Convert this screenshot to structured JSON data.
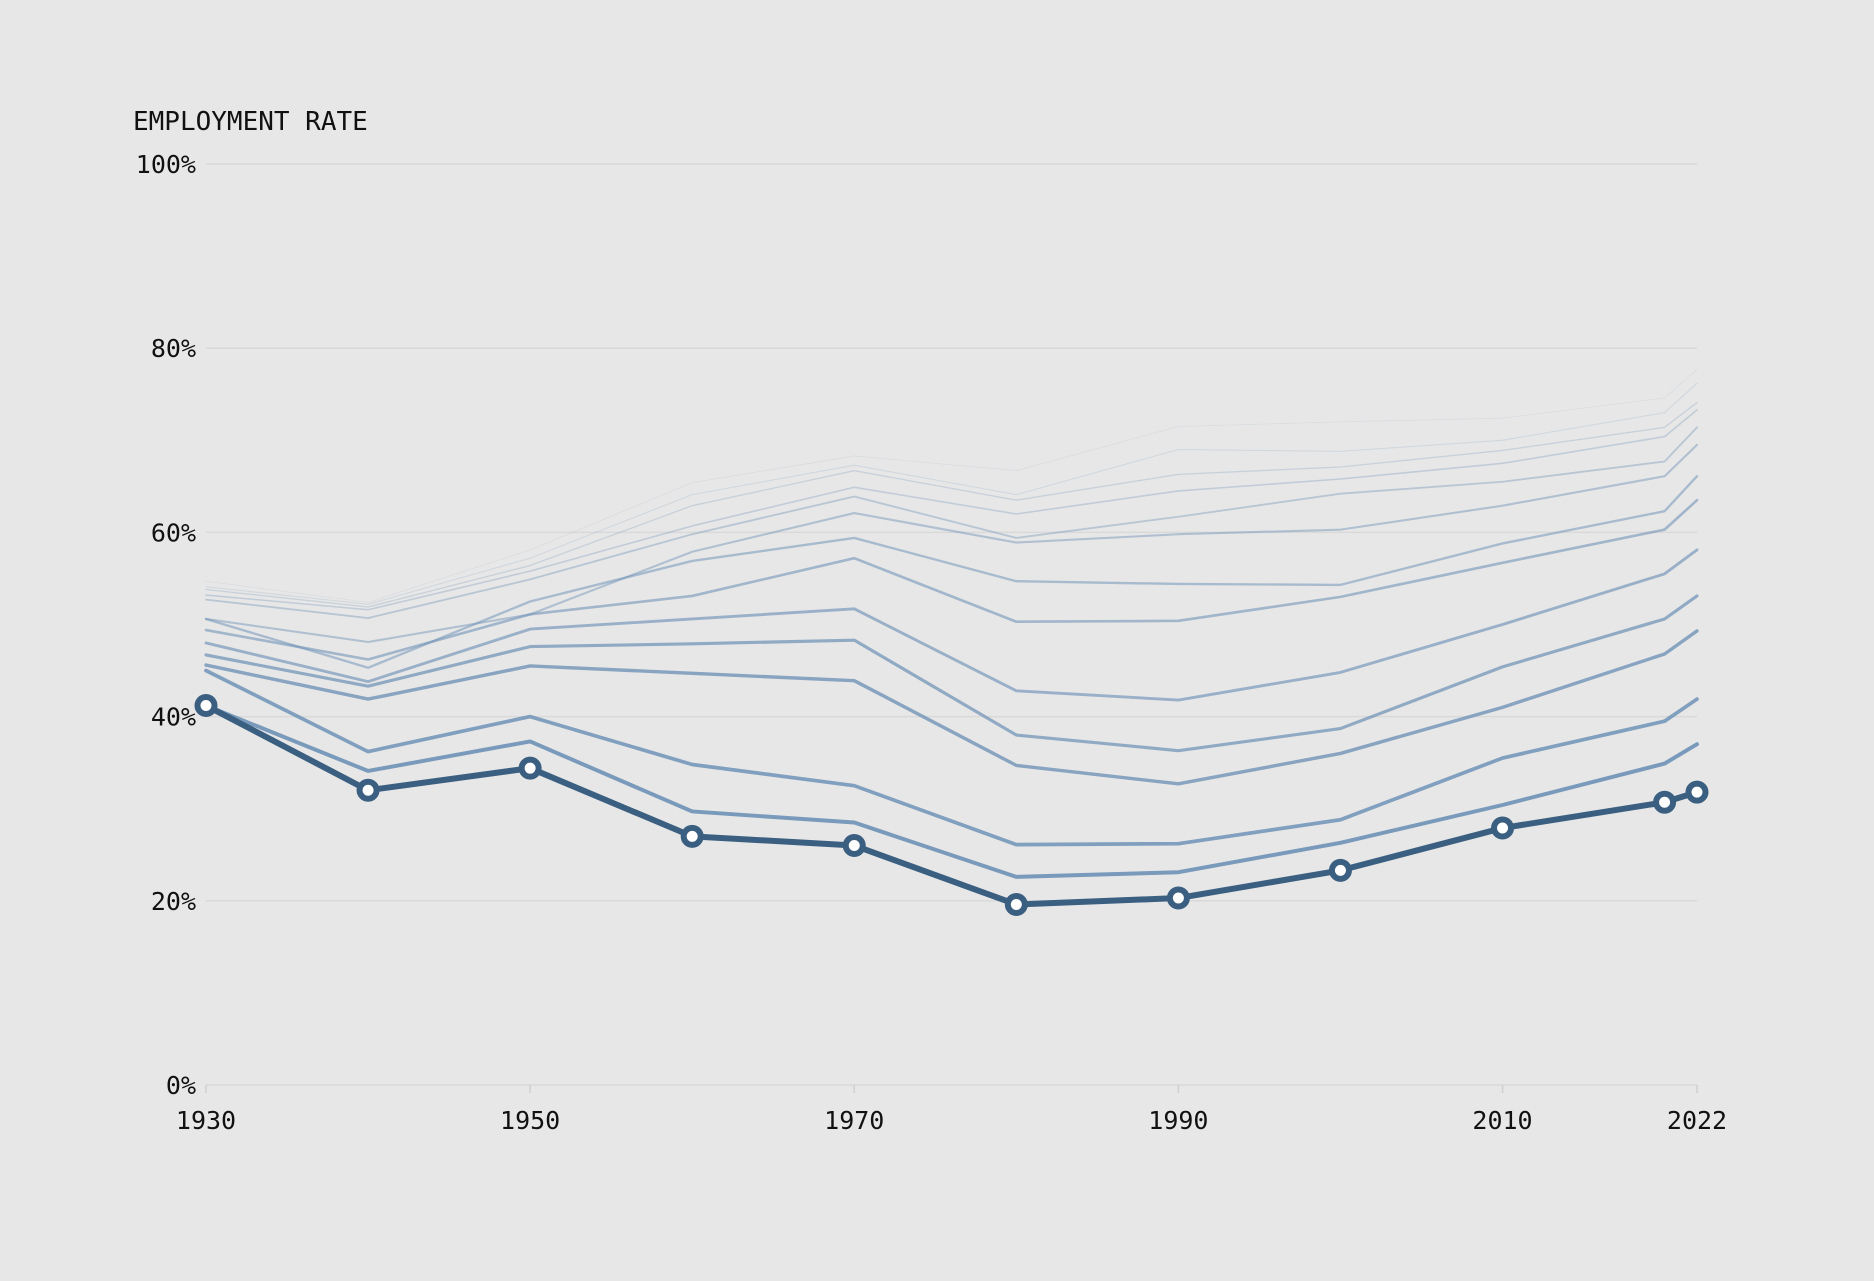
{
  "chart_data": {
    "type": "line",
    "title": "",
    "ylabel": "EMPLOYMENT RATE",
    "xlabel": "",
    "ylim": [
      0,
      100
    ],
    "xlim": [
      1930,
      2022
    ],
    "y_ticks": [
      "0%",
      "20%",
      "40%",
      "60%",
      "80%",
      "100%"
    ],
    "y_tick_values": [
      0,
      20,
      40,
      60,
      80,
      100
    ],
    "x_ticks": [
      "1930",
      "1950",
      "1970",
      "1990",
      "2010",
      "2022"
    ],
    "x_tick_values": [
      1930,
      1950,
      1970,
      1990,
      2010,
      2022
    ],
    "grid": "horizontal",
    "x": [
      1930,
      1940,
      1950,
      1960,
      1970,
      1980,
      1990,
      2000,
      2010,
      2020,
      2022
    ],
    "highlight_series_index": 0,
    "colors": {
      "background": "#e7e7e7",
      "highlight": "#3b5f80",
      "series": "#7093b7",
      "grid": "#d9d9d9"
    },
    "series": [
      {
        "values": [
          41.2,
          32.0,
          34.4,
          27.0,
          26.0,
          19.6,
          20.3,
          23.3,
          27.9,
          30.7,
          31.8
        ]
      },
      {
        "values": [
          41.2,
          34.1,
          37.3,
          29.7,
          28.5,
          22.6,
          23.1,
          26.3,
          30.4,
          34.9,
          37.0
        ]
      },
      {
        "values": [
          45.0,
          36.2,
          40.0,
          34.8,
          32.5,
          26.1,
          26.2,
          28.8,
          35.5,
          39.5,
          41.9
        ]
      },
      {
        "values": [
          45.6,
          41.9,
          45.5,
          44.7,
          43.9,
          34.7,
          32.7,
          36.0,
          41.0,
          46.8,
          49.3
        ]
      },
      {
        "values": [
          46.7,
          43.3,
          47.6,
          47.9,
          48.3,
          38.0,
          36.3,
          38.7,
          45.4,
          50.6,
          53.1
        ]
      },
      {
        "values": [
          48.0,
          43.8,
          49.5,
          50.6,
          51.7,
          42.8,
          41.8,
          44.8,
          50.0,
          55.5,
          58.1
        ]
      },
      {
        "values": [
          49.4,
          46.2,
          51.1,
          53.1,
          57.2,
          50.3,
          50.4,
          53.0,
          56.7,
          60.3,
          63.5
        ]
      },
      {
        "values": [
          50.6,
          45.3,
          52.5,
          56.9,
          59.4,
          54.7,
          54.4,
          54.3,
          58.8,
          62.3,
          66.1
        ]
      },
      {
        "values": [
          50.6,
          48.1,
          51.1,
          57.9,
          62.1,
          58.9,
          59.8,
          60.3,
          62.9,
          66.1,
          69.5
        ]
      },
      {
        "values": [
          52.7,
          50.7,
          54.9,
          59.8,
          63.9,
          59.4,
          61.7,
          64.2,
          65.5,
          67.7,
          71.4
        ]
      },
      {
        "values": [
          53.2,
          51.6,
          55.8,
          60.7,
          64.9,
          62.0,
          64.5,
          65.8,
          67.5,
          70.4,
          73.3
        ]
      },
      {
        "values": [
          53.8,
          51.9,
          56.4,
          62.9,
          66.7,
          63.5,
          66.3,
          67.1,
          68.9,
          71.4,
          74.1
        ]
      },
      {
        "values": [
          54.1,
          52.2,
          57.2,
          64.1,
          67.3,
          64.1,
          69.0,
          68.8,
          70.0,
          73.0,
          76.2
        ]
      },
      {
        "values": [
          54.7,
          52.4,
          58.1,
          65.4,
          68.3,
          66.7,
          71.5,
          72.0,
          72.4,
          74.6,
          77.7
        ]
      }
    ]
  }
}
